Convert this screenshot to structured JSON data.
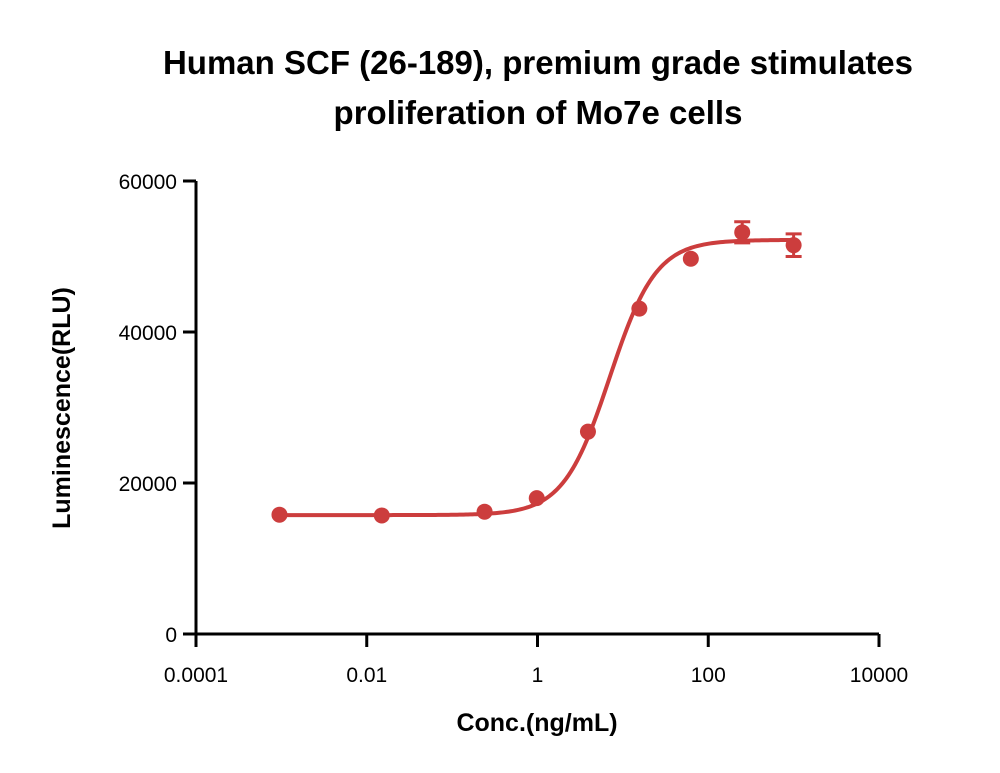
{
  "chart_data": {
    "type": "scatter",
    "title_lines": [
      "Human SCF (26-189), premium grade stimulates",
      "proliferation of Mo7e cells"
    ],
    "xlabel": "Conc.(ng/mL)",
    "ylabel": "Luminescence(RLU)",
    "x_scale": "log",
    "xlim": [
      0.0001,
      10000
    ],
    "ylim": [
      0,
      60000
    ],
    "x_ticks": [
      0.0001,
      0.01,
      1,
      100,
      10000
    ],
    "x_tick_labels": [
      "0.0001",
      "0.01",
      "1",
      "100",
      "10000"
    ],
    "y_ticks": [
      0,
      20000,
      40000,
      60000
    ],
    "y_tick_labels": [
      "0",
      "20000",
      "40000",
      "60000"
    ],
    "grid": false,
    "legend": "none",
    "color": "#cc3d3d",
    "series": [
      {
        "points": [
          {
            "x": 0.00095,
            "y": 15800,
            "err": 0
          },
          {
            "x": 0.015,
            "y": 15700,
            "err": 0
          },
          {
            "x": 0.24,
            "y": 16200,
            "err": 0
          },
          {
            "x": 0.98,
            "y": 18000,
            "err": 0
          },
          {
            "x": 3.9,
            "y": 26800,
            "err": 0
          },
          {
            "x": 15.6,
            "y": 43100,
            "err": 0
          },
          {
            "x": 62.5,
            "y": 49700,
            "err": 0
          },
          {
            "x": 250,
            "y": 53200,
            "err": 1400
          },
          {
            "x": 1000,
            "y": 51500,
            "err": 1500
          }
        ],
        "fit": {
          "bottom": 15750,
          "top": 52200,
          "ec50": 7.0,
          "hill": 1.6,
          "x_range": [
            0.00095,
            1000
          ]
        }
      }
    ]
  }
}
